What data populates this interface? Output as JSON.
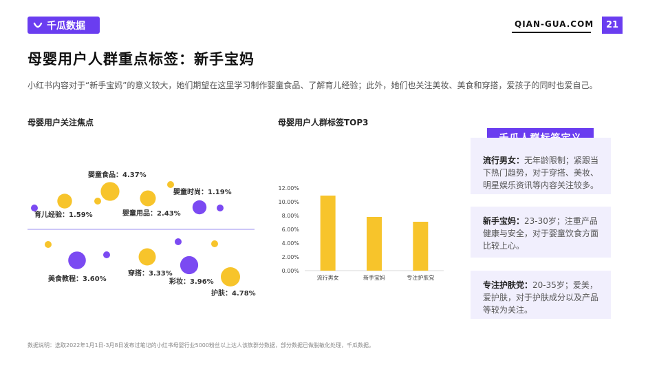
{
  "header": {
    "logo_text": "千瓜数据",
    "site": "QIAN-GUA.COM",
    "page_number": "21",
    "brand_color": "#6a3df0"
  },
  "title": "母婴用户人群重点标签：新手宝妈",
  "description": "小红书内容对于“新手宝妈”的意义较大，她们期望在这里学习制作婴童食品、了解育儿经验；此外，她们也关注美妆、美食和穿搭，爱孩子的同时也爱自己。",
  "left_section_title": "母婴用户关注焦点",
  "middle_section_title": "母婴用户人群标签TOP3",
  "definition": {
    "header": "千瓜人群标签定义",
    "cards": [
      {
        "term": "流行男女",
        "sep": "：",
        "text": "无年龄限制；紧跟当下热门趋势，对于穿搭、美妆、明星娱乐资讯等内容关注较多。"
      },
      {
        "term": "新手宝妈",
        "sep": "：",
        "text": "23-30岁；注重产品健康与安全，对于婴童饮食方面比较上心。"
      },
      {
        "term": "专注护肤党",
        "sep": "：",
        "text": "20-35岁；爱美，爱护肤，对于护肤成分以及产品等较为关注。"
      }
    ]
  },
  "footnote": "数据说明：选取2022年1月1日-3月8日发布过笔记的小红书母婴行业5000粉丝以上达人该族群分数据，部分数据已做脱敏化处理，千瓜数据。",
  "chart_data": [
    {
      "type": "scatter",
      "title": "母婴用户关注焦点",
      "points": [
        {
          "label": "育儿经验",
          "value": 1.59,
          "value_label": "1.59%",
          "color": "#f7c42b"
        },
        {
          "label": "婴童食品",
          "value": 4.37,
          "value_label": "4.37%",
          "color": "#f7c42b"
        },
        {
          "label": "婴童用品",
          "value": 2.43,
          "value_label": "2.43%",
          "color": "#f7c42b"
        },
        {
          "label": "婴童时尚",
          "value": 1.19,
          "value_label": "1.19%",
          "color": "#7b4af2"
        },
        {
          "label": "美食教程",
          "value": 3.6,
          "value_label": "3.60%",
          "color": "#7b4af2"
        },
        {
          "label": "穿搭",
          "value": 3.33,
          "value_label": "3.33%",
          "color": "#f7c42b"
        },
        {
          "label": "彩妆",
          "value": 3.96,
          "value_label": "3.96%",
          "color": "#7b4af2"
        },
        {
          "label": "护肤",
          "value": 4.78,
          "value_label": "4.78%",
          "color": "#f7c42b"
        }
      ],
      "label_sep": "：",
      "colors": {
        "yellow": "#f7c42b",
        "purple": "#7b4af2",
        "axis": "#9b8cf0"
      }
    },
    {
      "type": "bar",
      "title": "母婴用户人群标签TOP3",
      "categories": [
        "流行男女",
        "新手宝妈",
        "专注护肤党"
      ],
      "values": [
        10.9,
        7.8,
        7.1
      ],
      "ylim": [
        0,
        12
      ],
      "yticks": [
        "0.00%",
        "2.00%",
        "4.00%",
        "6.00%",
        "8.00%",
        "10.00%",
        "12.00%"
      ],
      "bar_color": "#f7c42b",
      "grid": false
    }
  ]
}
